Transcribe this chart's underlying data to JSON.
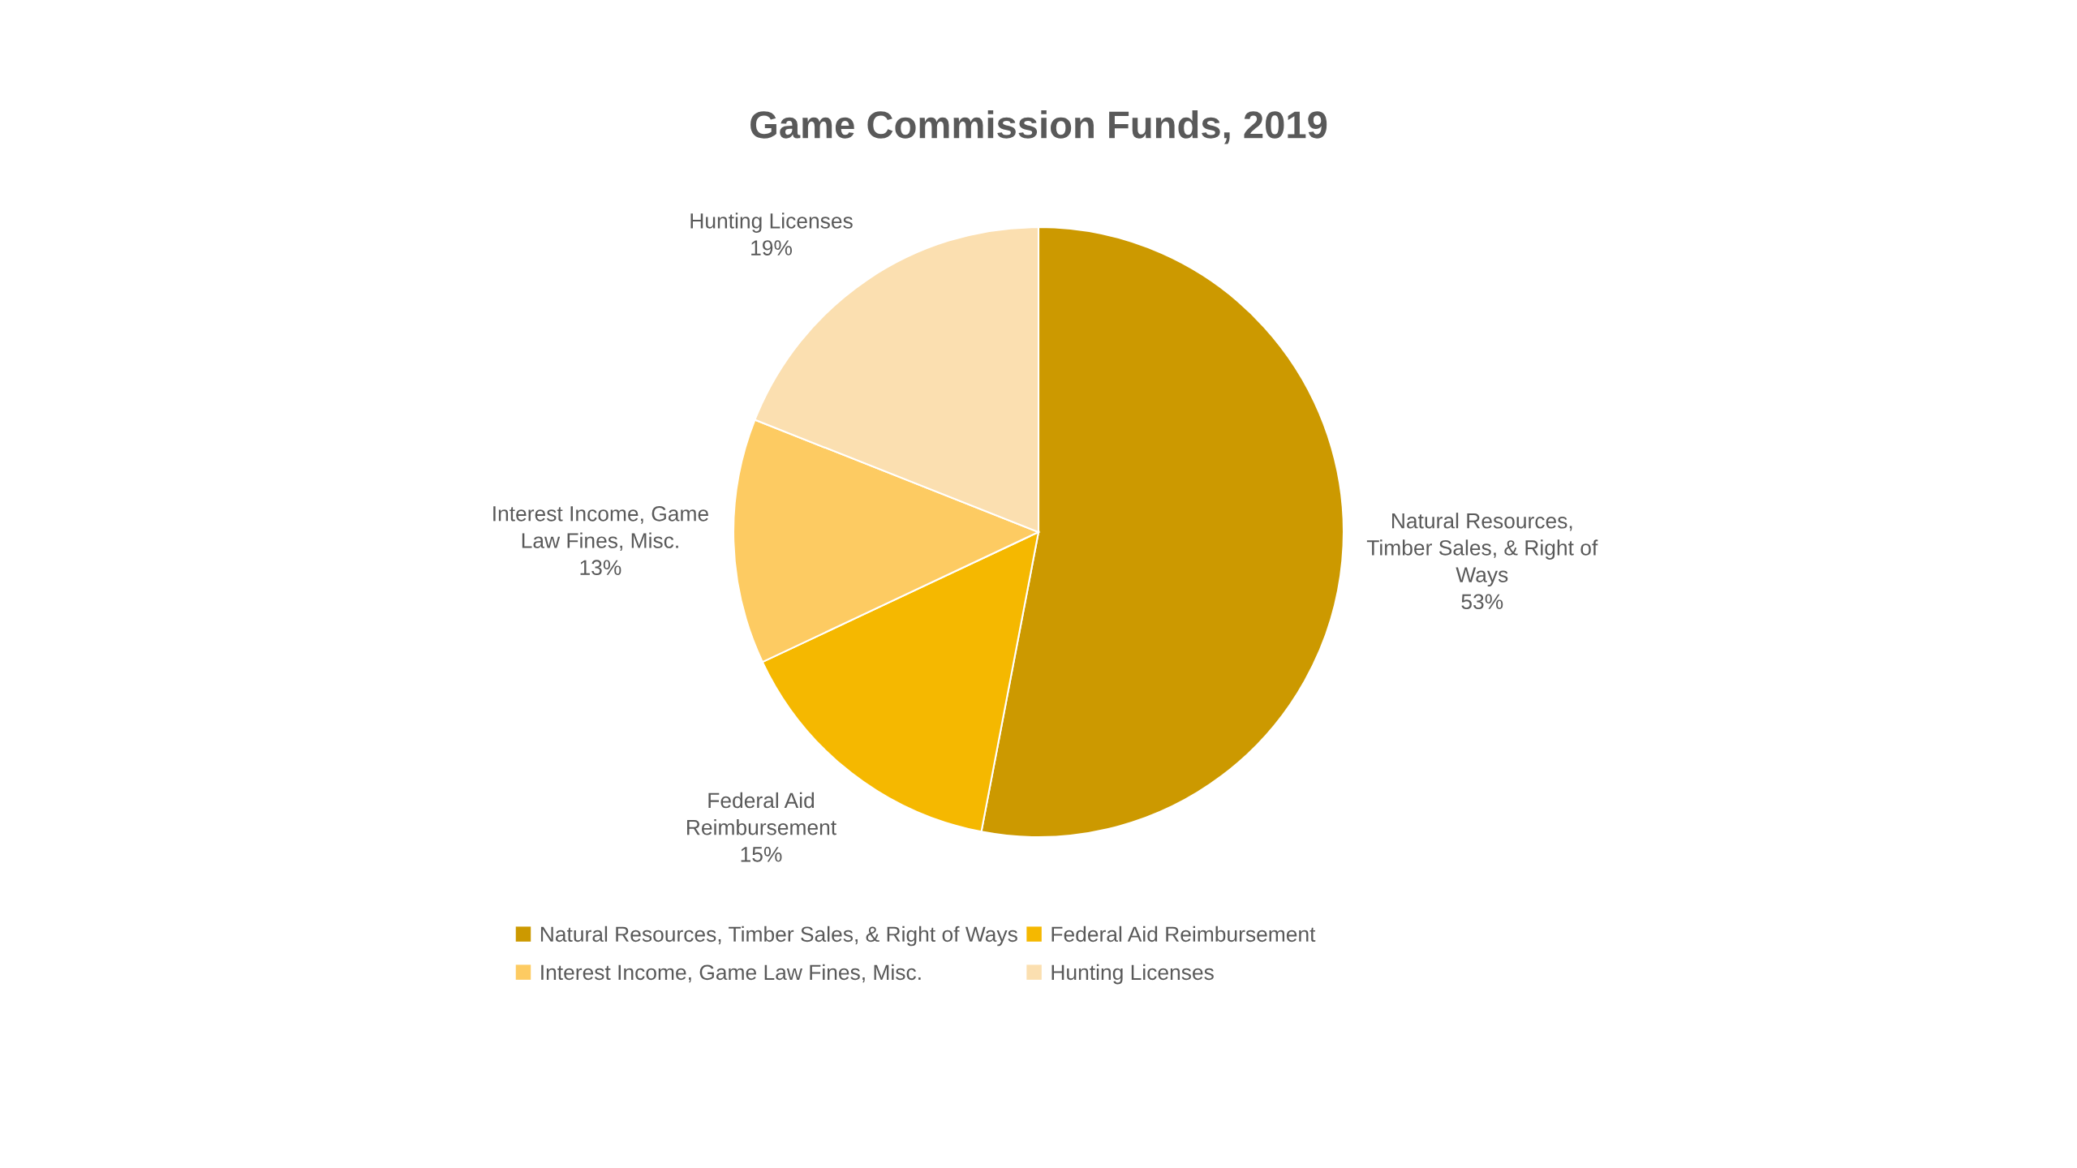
{
  "chart_data": {
    "type": "pie",
    "title": "Game Commission Funds, 2019",
    "categories": [
      "Natural Resources, Timber Sales, & Right of Ways",
      "Federal Aid Reimbursement",
      "Interest Income, Game Law Fines, Misc.",
      "Hunting Licenses"
    ],
    "values": [
      53,
      15,
      13,
      19
    ],
    "colors": [
      "#cc9900",
      "#f5b800",
      "#fdcb62",
      "#fbdfb0"
    ],
    "value_labels": [
      "53%",
      "15%",
      "13%",
      "19%"
    ],
    "legend": "bottom"
  }
}
